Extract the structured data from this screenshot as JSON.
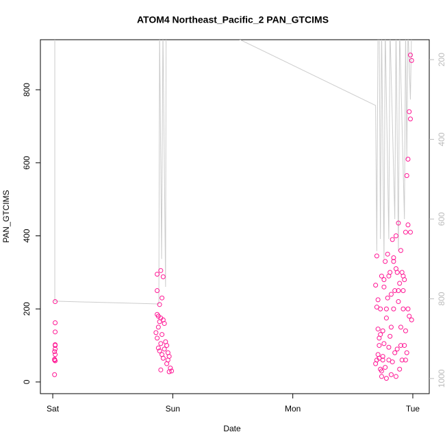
{
  "chart_data": {
    "type": "scatter",
    "title": "ATOM4 Northeast_Pacific_2 PAN_GTCIMS",
    "x_label": "Date",
    "y_label": "PAN_GTCIMS",
    "xlim": [
      -0.103,
      3.137
    ],
    "xticks": [
      {
        "value": 0,
        "label": "Sat"
      },
      {
        "value": 1,
        "label": "Sun"
      },
      {
        "value": 2,
        "label": "Mon"
      },
      {
        "value": 3,
        "label": "Tue"
      }
    ],
    "ylim": [
      -32,
      937
    ],
    "yticks": [
      0,
      200,
      400,
      600,
      800
    ],
    "y2lim": [
      1038,
      150
    ],
    "y2ticks": [
      200,
      400,
      600,
      800,
      1000
    ],
    "y2_color": "#bbbbbb",
    "series": [
      {
        "type": "scatter",
        "color": "#ff1493",
        "x": [
          0.02,
          0.02,
          0.02,
          0.02,
          0.02,
          0.02,
          0.015,
          0.02,
          0.015,
          0.02,
          0.015,
          0.015,
          0.87,
          0.9,
          0.92,
          0.87,
          0.91,
          0.89,
          0.87,
          0.88,
          0.9,
          0.92,
          0.89,
          0.93,
          0.88,
          0.86,
          0.91,
          0.87,
          0.94,
          0.9,
          0.95,
          0.88,
          0.93,
          0.89,
          0.96,
          0.91,
          0.97,
          0.92,
          0.96,
          0.95,
          0.98,
          0.9,
          0.99,
          0.97,
          2.69,
          2.7,
          2.7,
          2.71,
          2.71,
          2.72,
          2.72,
          2.73,
          2.73,
          2.74,
          2.74,
          2.75,
          2.75,
          2.76,
          2.76,
          2.77,
          2.77,
          2.78,
          2.78,
          2.79,
          2.79,
          2.8,
          2.8,
          2.81,
          2.81,
          2.82,
          2.82,
          2.83,
          2.83,
          2.84,
          2.84,
          2.85,
          2.85,
          2.86,
          2.86,
          2.87,
          2.87,
          2.88,
          2.88,
          2.89,
          2.89,
          2.9,
          2.9,
          2.91,
          2.91,
          2.92,
          2.92,
          2.93,
          2.93,
          2.94,
          2.94,
          2.95,
          2.95,
          2.96,
          2.96,
          2.97,
          2.97,
          2.98,
          2.98,
          2.99,
          2.69,
          2.7,
          2.72,
          2.74,
          2.76,
          2.78,
          2.8,
          2.82,
          2.84,
          2.86,
          2.88,
          2.9,
          2.92,
          2.94,
          2.96,
          2.98,
          2.99,
          2.71,
          2.73,
          2.75
        ],
        "values": [
          220,
          162,
          137,
          102,
          100,
          90,
          83,
          75,
          62,
          58,
          60,
          20,
          295,
          305,
          288,
          250,
          230,
          212,
          185,
          180,
          175,
          170,
          165,
          160,
          150,
          135,
          130,
          120,
          110,
          105,
          100,
          93,
          90,
          85,
          80,
          75,
          70,
          65,
          60,
          50,
          38,
          33,
          30,
          28,
          265,
          345,
          60,
          225,
          145,
          65,
          100,
          35,
          200,
          15,
          290,
          140,
          70,
          105,
          280,
          40,
          330,
          175,
          10,
          230,
          350,
          60,
          290,
          125,
          300,
          20,
          240,
          390,
          55,
          200,
          330,
          80,
          250,
          400,
          15,
          300,
          90,
          220,
          435,
          35,
          270,
          150,
          360,
          60,
          300,
          200,
          250,
          100,
          280,
          410,
          140,
          565,
          80,
          610,
          200,
          740,
          180,
          895,
          410,
          170,
          50,
          205,
          120,
          30,
          260,
          200,
          95,
          150,
          340,
          310,
          250,
          100,
          290,
          60,
          430,
          720,
          880,
          75,
          130,
          60
        ]
      },
      {
        "type": "line",
        "axis": "y2",
        "color": "#cccccc",
        "x": [
          0.017,
          0.017,
          0.884,
          0.89,
          0.907,
          0.918,
          0.94,
          0.945,
          2.69,
          2.7,
          2.71,
          2.72,
          2.73,
          2.74,
          2.76,
          2.77,
          2.8,
          2.81,
          2.85,
          2.86,
          2.88,
          2.89,
          2.93,
          2.94,
          2.95,
          2.96,
          2.98,
          2.99
        ],
        "values": [
          120,
          806,
          813,
          120,
          700,
          120,
          770,
          60,
          315,
          680,
          120,
          120,
          650,
          120,
          700,
          120,
          650,
          120,
          600,
          120,
          680,
          120,
          600,
          120,
          450,
          120,
          300,
          120
        ]
      }
    ]
  }
}
